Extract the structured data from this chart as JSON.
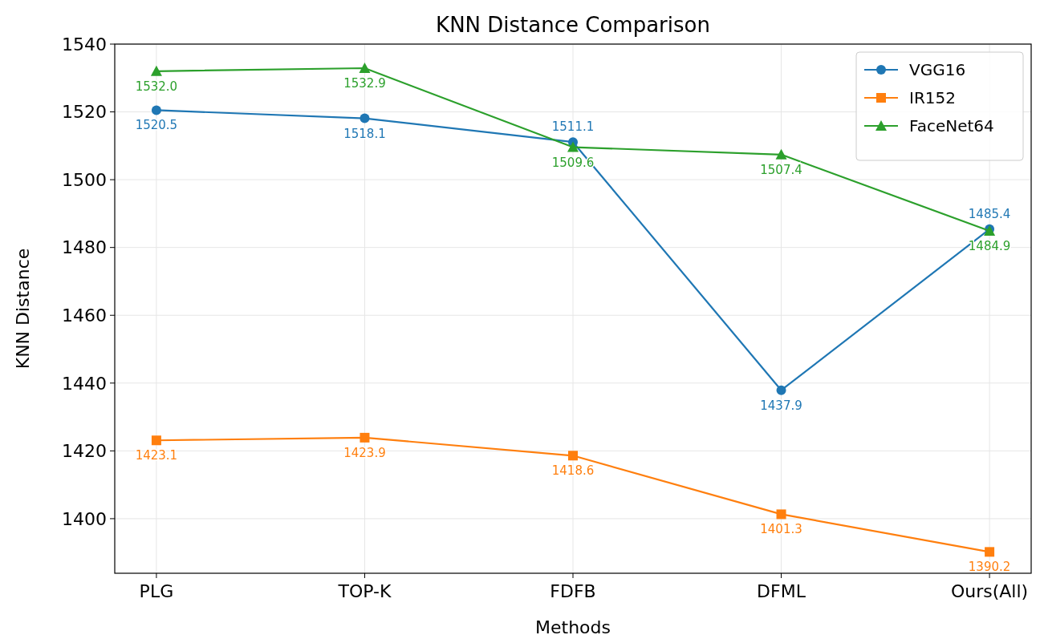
{
  "chart_data": {
    "type": "line",
    "title": "KNN Distance Comparison",
    "xlabel": "Methods",
    "ylabel": "KNN Distance",
    "categories": [
      "PLG",
      "TOP-K",
      "FDFB",
      "DFML",
      "Ours(All)"
    ],
    "series": [
      {
        "name": "VGG16",
        "color": "#1f77b4",
        "marker": "circle",
        "values": [
          1520.5,
          1518.1,
          1511.1,
          1437.9,
          1485.4
        ],
        "value_labels": [
          "1520.5",
          "1518.1",
          "1511.1",
          "1437.9",
          "1485.4"
        ]
      },
      {
        "name": "IR152",
        "color": "#ff7f0e",
        "marker": "square",
        "values": [
          1423.1,
          1423.9,
          1418.6,
          1401.3,
          1390.2
        ],
        "value_labels": [
          "1423.1",
          "1423.9",
          "1418.6",
          "1401.3",
          "1390.2"
        ]
      },
      {
        "name": "FaceNet64",
        "color": "#2ca02c",
        "marker": "triangle",
        "values": [
          1532.0,
          1532.9,
          1509.6,
          1507.4,
          1484.9
        ],
        "value_labels": [
          "1532.0",
          "1532.9",
          "1509.6",
          "1507.4",
          "1484.9"
        ]
      }
    ],
    "ylim": [
      1383.9,
      1540
    ],
    "yticks": [
      1400,
      1420,
      1440,
      1460,
      1480,
      1500,
      1520,
      1540
    ],
    "grid": true,
    "legend": "top right",
    "line_style": "solid"
  }
}
